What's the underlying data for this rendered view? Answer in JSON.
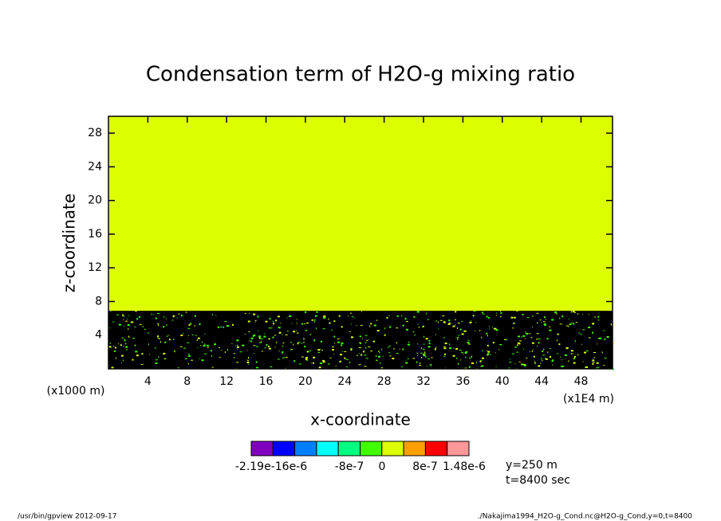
{
  "chart_data": {
    "type": "heatmap",
    "title": "Condensation term of H2O-g mixing ratio",
    "x_label": "x-coordinate",
    "y_label": "z-coordinate",
    "x_unit": "(x1E4 m)",
    "y_unit": "(x1000 m)",
    "xlim": [
      0,
      51.2
    ],
    "xticks": [
      4,
      8,
      12,
      16,
      20,
      24,
      28,
      32,
      36,
      40,
      44,
      48
    ],
    "ylim": [
      0,
      30
    ],
    "yticks": [
      4,
      8,
      12,
      16,
      20,
      24,
      28
    ],
    "regions": [
      {
        "zlim": [
          0,
          6.9
        ],
        "color": "#000000"
      },
      {
        "zlim": [
          6.9,
          30
        ],
        "color": "#dcff00"
      }
    ],
    "colorbar": {
      "colors": [
        "#8000c0",
        "#0000ff",
        "#0080ff",
        "#00ffff",
        "#00ff80",
        "#40ff00",
        "#dcff00",
        "#ffa000",
        "#ff0000",
        "#ff9898"
      ],
      "labels": [
        "-2.19e-16e-6",
        "-8e-7",
        "0",
        "8e-7",
        "1.48e-6"
      ]
    },
    "annotations": [
      "y=250 m",
      "t=8400 sec"
    ],
    "footer_left": "/usr/bin/gpview  2012-09-17",
    "footer_right": "./Nakajima1994_H2O-g_Cond.nc@H2O-g_Cond,y=0,t=8400"
  }
}
